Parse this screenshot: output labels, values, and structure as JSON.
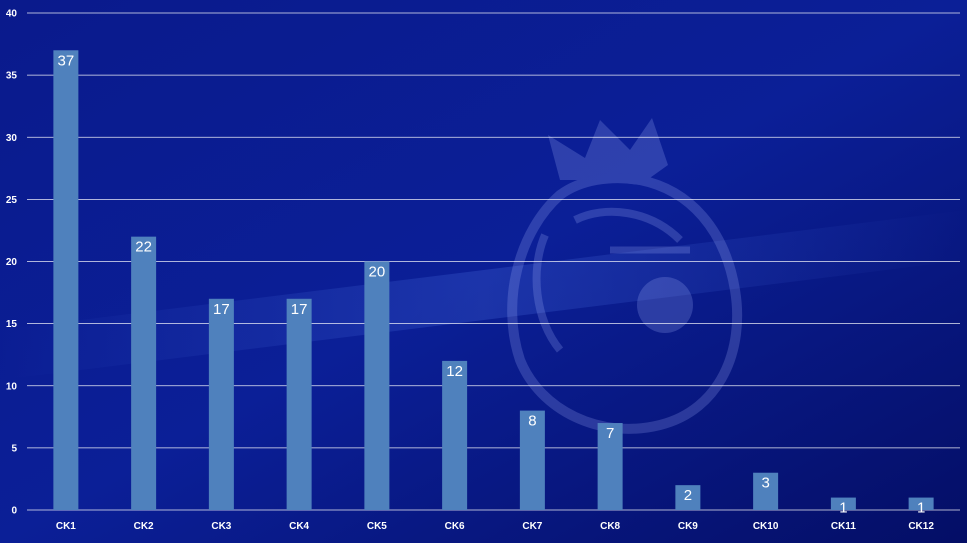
{
  "chart_data": {
    "type": "bar",
    "categories": [
      "CK1",
      "CK2",
      "CK3",
      "CK4",
      "CK5",
      "CK6",
      "CK7",
      "CK8",
      "CK9",
      "CK10",
      "CK11",
      "CK12"
    ],
    "values": [
      37,
      22,
      17,
      17,
      20,
      12,
      8,
      7,
      2,
      3,
      1,
      1
    ],
    "ylim": [
      0,
      40
    ],
    "yticks": [
      0,
      5,
      10,
      15,
      20,
      25,
      30,
      35,
      40
    ],
    "grid": true,
    "data_labels": true,
    "title": "",
    "xlabel": "",
    "ylabel": "",
    "colors": {
      "bar": "#4f81bd",
      "background": "#06127a",
      "grid": "#ffffff",
      "text": "#ffffff"
    },
    "background_logo": "premier-league-lion-watermark"
  }
}
